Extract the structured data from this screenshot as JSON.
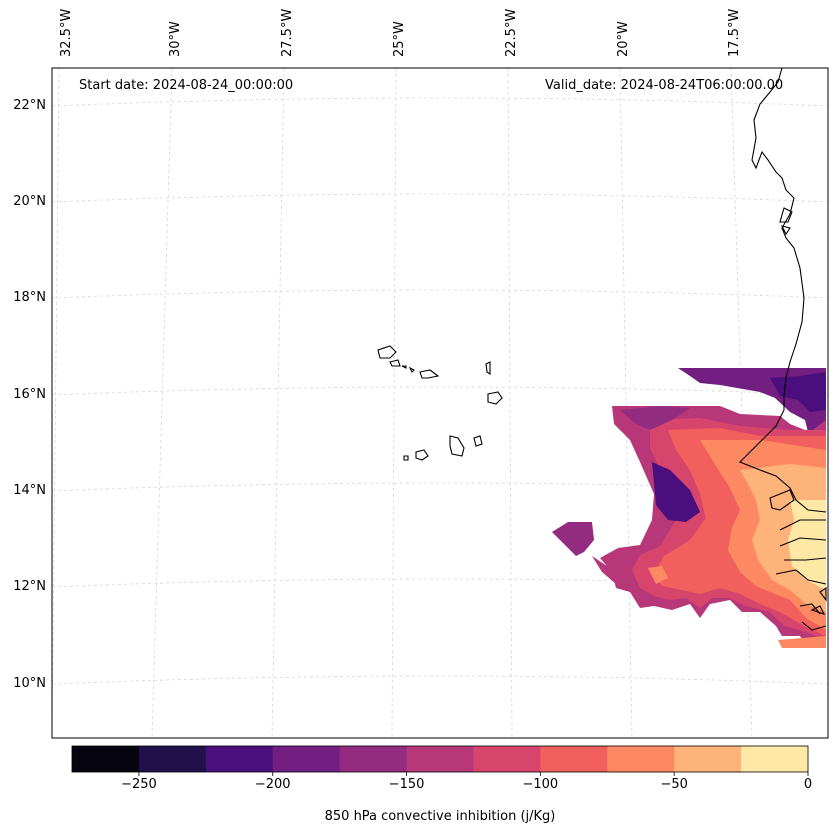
{
  "annotations": {
    "start_date": "Start date: 2024-08-24_00:00:00",
    "valid_date": "Valid_date: 2024-08-24T06:00:00.00"
  },
  "lon_labels": [
    "32.5°W",
    "30°W",
    "27.5°W",
    "25°W",
    "22.5°W",
    "20°W",
    "17.5°W"
  ],
  "lat_labels": [
    "22°N",
    "20°N",
    "18°N",
    "16°N",
    "14°N",
    "12°N",
    "10°N"
  ],
  "colorbar": {
    "title": "850 hPa convective inhibition (j/Kg)",
    "ticks": [
      "−250",
      "−200",
      "−150",
      "−100",
      "−50",
      "0"
    ],
    "tick_values": [
      -250,
      -200,
      -150,
      -100,
      -50,
      0
    ],
    "range": [
      -275,
      0
    ],
    "levels": [
      -275,
      -250,
      -225,
      -200,
      -175,
      -150,
      -125,
      -100,
      -75,
      -50,
      -25,
      0
    ],
    "colors": [
      "#05040f",
      "#20114b",
      "#4a0f7c",
      "#721f81",
      "#932b80",
      "#b73779",
      "#d8456c",
      "#f1605d",
      "#fc8961",
      "#feb37b",
      "#fee8a6"
    ]
  },
  "map": {
    "colormap": "magma",
    "coastline_color": "#000000",
    "gridline_color": "#d0d0d0"
  }
}
